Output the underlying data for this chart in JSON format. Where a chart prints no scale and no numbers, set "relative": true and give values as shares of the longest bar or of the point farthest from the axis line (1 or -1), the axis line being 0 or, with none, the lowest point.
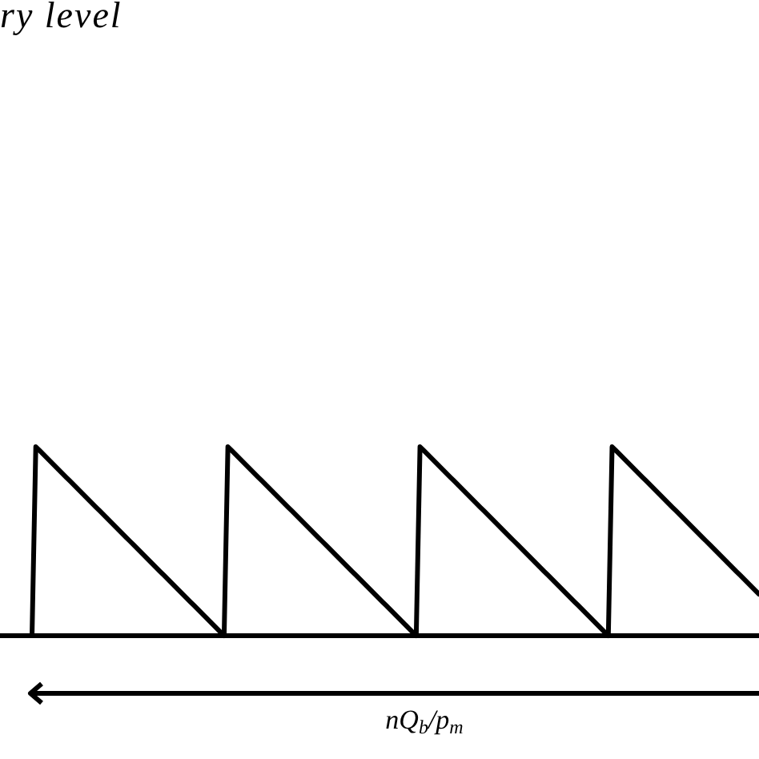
{
  "chart_data": {
    "type": "line",
    "annotations": [
      "ry level",
      "nQ$_{b}$/p$_{m}$"
    ],
    "categories": [
      null,
      null,
      null,
      null,
      null,
      null,
      null,
      null,
      null,
      null,
      null,
      null,
      null,
      null,
      null,
      null,
      null,
      null,
      null,
      null,
      null,
      null,
      null,
      null,
      null,
      null,
      null,
      null,
      null,
      null,
      null,
      null,
      null,
      null,
      null,
      null,
      null,
      null,
      null,
      null,
      null,
      null,
      null,
      null,
      null,
      null,
      null,
      null,
      null,
      null,
      null,
      null,
      null,
      null,
      null,
      null,
      null,
      null,
      null,
      null,
      null,
      null,
      null,
      null,
      null,
      null,
      null,
      null,
      null,
      null,
      null,
      null,
      null,
      null,
      null,
      null,
      null,
      null,
      null,
      null,
      null,
      null,
      null,
      null,
      null,
      null,
      null,
      null,
      null,
      null,
      null,
      null,
      null,
      null,
      null,
      null,
      null,
      null,
      null,
      null,
      null,
      null,
      null,
      null,
      null,
      null,
      null,
      null,
      null,
      null,
      null,
      null,
      null,
      null,
      null,
      null,
      null,
      null,
      null,
      null,
      null,
      null,
      null,
      null,
      null,
      null,
      null,
      null,
      null,
      null,
      null,
      null,
      null,
      null,
      null,
      null,
      null,
      null,
      null,
      null,
      null,
      null,
      null,
      null,
      null,
      null,
      null,
      null,
      null,
      null,
      null,
      null,
      null,
      null,
      null,
      null,
      null,
      null,
      null,
      null,
      null,
      null,
      null,
      null,
      null,
      null,
      null,
      null,
      null,
      null,
      null,
      null,
      null,
      null,
      null,
      null,
      null,
      null,
      null,
      null,
      null,
      null,
      null,
      null,
      null,
      null,
      null,
      null,
      null,
      null,
      null,
      null,
      null,
      null
    ],
    "values": [
      0,
      1,
      0.98,
      0.96,
      0.94,
      0.92,
      0.9,
      0.88,
      0.86,
      0.84,
      0.82,
      0.8,
      0.78,
      0.76,
      0.74,
      0.72,
      0.7,
      0.68,
      0.66,
      0.64,
      0.62,
      0.6,
      0.58,
      0.56,
      0.54,
      0.52,
      0.5,
      0.48,
      0.46,
      0.44,
      0.42,
      0.4,
      0.38,
      0.36,
      0.34,
      0.32,
      0.3,
      0.28,
      0.26,
      0.24,
      0.22,
      0.2,
      0.18,
      0.16,
      0.14,
      0.12,
      0.1,
      0.08,
      0.06,
      0.04,
      0.02,
      0,
      1,
      0.98,
      0.96,
      0.94,
      0.92,
      0.9,
      0.88,
      0.86,
      0.84,
      0.82,
      0.8,
      0.78,
      0.76,
      0.74,
      0.72,
      0.7,
      0.68,
      0.66,
      0.64,
      0.62,
      0.6,
      0.58,
      0.56,
      0.54,
      0.52,
      0.5,
      0.48,
      0.46,
      0.44,
      0.42,
      0.4,
      0.38,
      0.36,
      0.34,
      0.32,
      0.3,
      0.28,
      0.26,
      0.24,
      0.22,
      0.2,
      0.18,
      0.16,
      0.14,
      0.12,
      0.1,
      0.08,
      0.06,
      0.04,
      0.02,
      0,
      1,
      0.98,
      0.96,
      0.94,
      0.92,
      0.9,
      0.88,
      0.86,
      0.84,
      0.82,
      0.8,
      0.78,
      0.76,
      0.74,
      0.72,
      0.7,
      0.68,
      0.66,
      0.64,
      0.62,
      0.6,
      0.58,
      0.56,
      0.54,
      0.52,
      0.5,
      0.48,
      0.46,
      0.44,
      0.42,
      0.4,
      0.38,
      0.36,
      0.34,
      0.32,
      0.3,
      0.28,
      0.26,
      0.24,
      0.22,
      0.2,
      0.18,
      0.16,
      0.14,
      0.12,
      0.1,
      0.08,
      0.06,
      0.04,
      0.02,
      0,
      1,
      0.98,
      0.96,
      0.94,
      0.92,
      0.9,
      0.88,
      0.86,
      0.84,
      0.82,
      0.8,
      0.78,
      0.76,
      0.74,
      0.72,
      0.7,
      0.68,
      0.66,
      0.64,
      0.62,
      0.6,
      0.58,
      0.56,
      0.54,
      0.52,
      0.5,
      0.48,
      0.46,
      0.44,
      0.42,
      0.4,
      0.38,
      0.36,
      0.34,
      0.32,
      0.3,
      0.28,
      0.26,
      0.24,
      0.22
    ],
    "color": "#000000",
    "relative": true,
    "line_style": "solid"
  }
}
